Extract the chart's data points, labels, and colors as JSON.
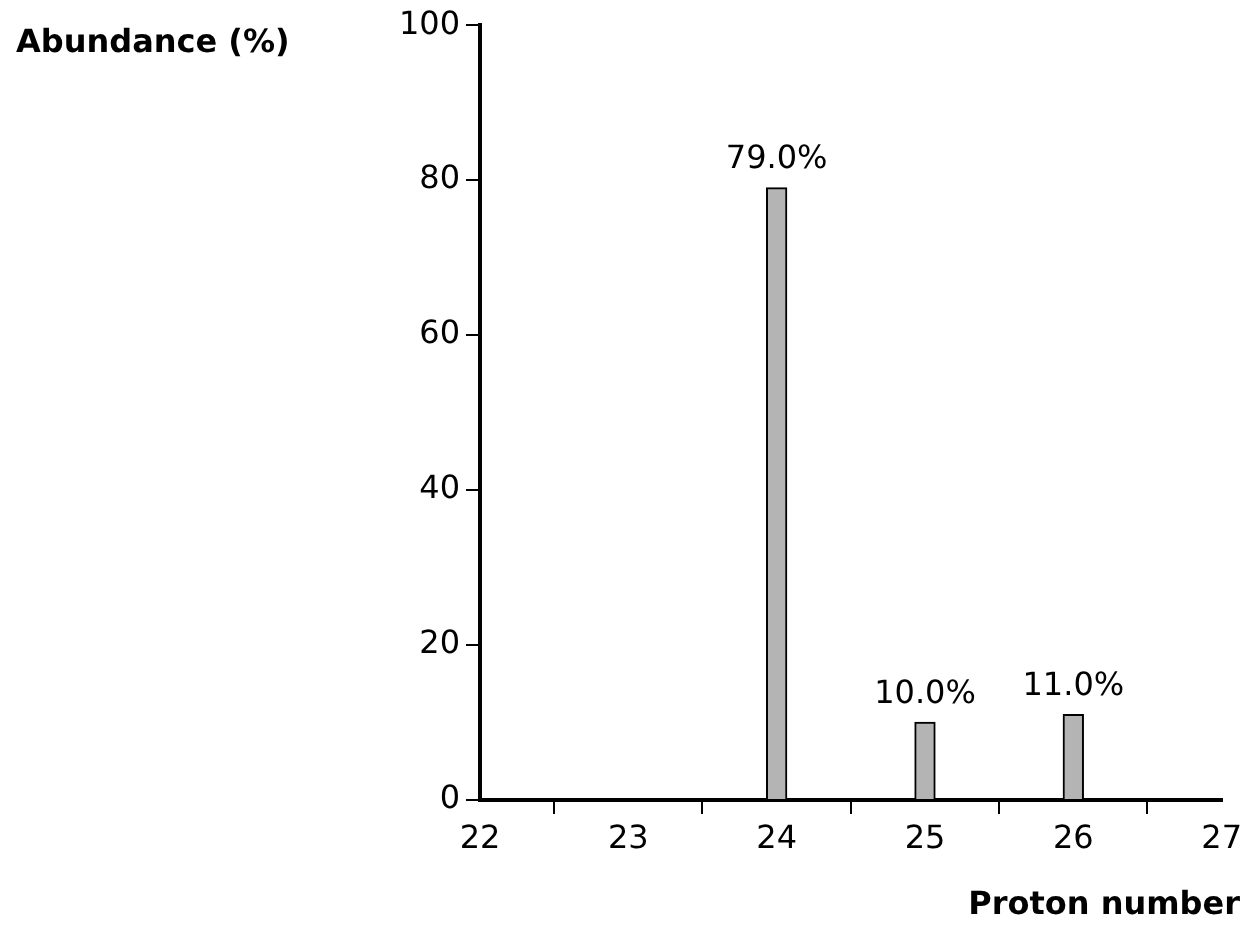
{
  "chart_data": {
    "type": "bar",
    "xlabel": "Proton number",
    "ylabel": "Abundance (%)",
    "x": [
      24,
      25,
      26
    ],
    "values": [
      79,
      10,
      11
    ],
    "color": "#b4b4b4",
    "value_labels": [
      "79.0%",
      "10.0%",
      "11.0%"
    ],
    "xlim": [
      22,
      27
    ],
    "xticks": [
      22,
      23,
      24,
      25,
      26,
      27
    ],
    "ylim": [
      0,
      100
    ],
    "yticks": [
      0,
      20,
      40,
      60,
      80,
      100
    ],
    "grid": false,
    "legend": false
  }
}
